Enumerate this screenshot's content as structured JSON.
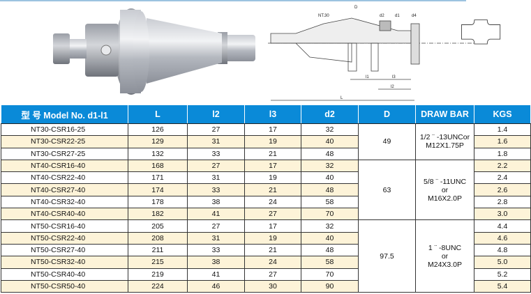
{
  "drawing_labels": {
    "taper": "NT.30",
    "D": "D",
    "d2": "d2",
    "d1": "d1",
    "d4": "d4",
    "l1": "l1",
    "l3": "l3",
    "l2": "l2",
    "L": "L"
  },
  "colors": {
    "header": "#0a8ad8",
    "row_alt": "#fdf3d8",
    "top_line": "#9cc3e0"
  },
  "table": {
    "headers": [
      "型 号 Model No. d1-l1",
      "L",
      "l2",
      "l3",
      "d2",
      "D",
      "DRAW BAR",
      "KGS"
    ],
    "groups": [
      {
        "D": "49",
        "draw_bar": [
          "1/2 ¨ -13UNCor",
          "M12X1.75P"
        ],
        "rows": [
          [
            "NT30-CSR16-25",
            "126",
            "27",
            "17",
            "32",
            "1.4"
          ],
          [
            "NT30-CSR22-25",
            "129",
            "31",
            "19",
            "40",
            "1.6"
          ],
          [
            "NT30-CSR27-25",
            "132",
            "33",
            "21",
            "48",
            "1.8"
          ]
        ]
      },
      {
        "D": "63",
        "draw_bar": [
          "5/8 ¨ -11UNC",
          "or",
          "M16X2.0P"
        ],
        "rows": [
          [
            "NT40-CSR16-40",
            "168",
            "27",
            "17",
            "32",
            "2.2"
          ],
          [
            "NT40-CSR22-40",
            "171",
            "31",
            "19",
            "40",
            "2.4"
          ],
          [
            "NT40-CSR27-40",
            "174",
            "33",
            "21",
            "48",
            "2.6"
          ],
          [
            "NT40-CSR32-40",
            "178",
            "38",
            "24",
            "58",
            "2.8"
          ],
          [
            "NT40-CSR40-40",
            "182",
            "41",
            "27",
            "70",
            "3.0"
          ]
        ]
      },
      {
        "D": "97.5",
        "draw_bar": [
          "1 ¨ -8UNC",
          "or",
          "M24X3.0P"
        ],
        "rows": [
          [
            "NT50-CSR16-40",
            "205",
            "27",
            "17",
            "32",
            "4.4"
          ],
          [
            "NT50-CSR22-40",
            "208",
            "31",
            "19",
            "40",
            "4.6"
          ],
          [
            "NT50-CSR27-40",
            "211",
            "33",
            "21",
            "48",
            "4.8"
          ],
          [
            "NT50-CSR32-40",
            "215",
            "38",
            "24",
            "58",
            "5.0"
          ],
          [
            "NT50-CSR40-40",
            "219",
            "41",
            "27",
            "70",
            "5.2"
          ],
          [
            "NT50-CSR50-40",
            "224",
            "46",
            "30",
            "90",
            "5.4"
          ]
        ]
      }
    ]
  }
}
